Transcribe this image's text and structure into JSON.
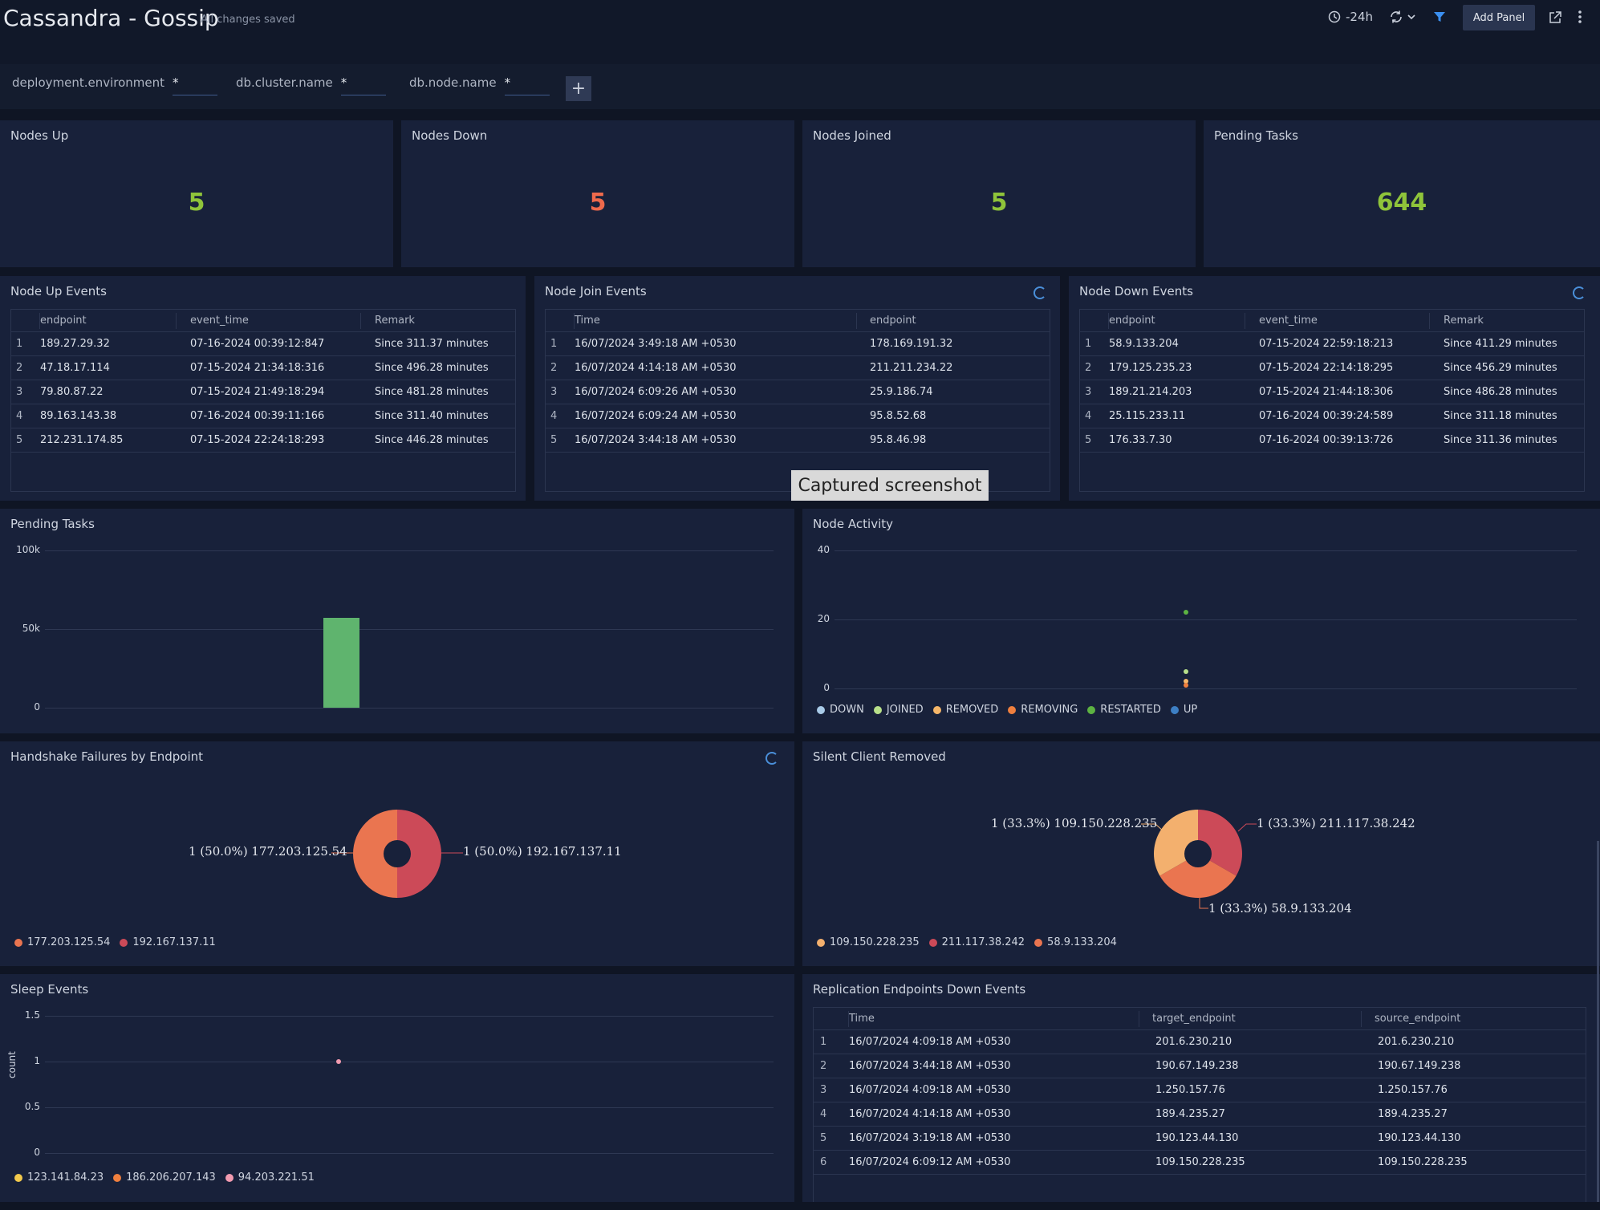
{
  "header": {
    "title": "Cassandra - Gossip",
    "saved_status": "All changes saved",
    "time_range": "-24h",
    "add_panel_label": "Add Panel"
  },
  "filters": [
    {
      "label": "deployment.environment",
      "value": "*"
    },
    {
      "label": "db.cluster.name",
      "value": "*"
    },
    {
      "label": "db.node.name",
      "value": "*"
    }
  ],
  "add_filter_label": "+",
  "stats": [
    {
      "title": "Nodes Up",
      "value": "5",
      "color": "#8fc43a"
    },
    {
      "title": "Nodes Down",
      "value": "5",
      "color": "#ef6a4c"
    },
    {
      "title": "Nodes Joined",
      "value": "5",
      "color": "#8fc43a"
    },
    {
      "title": "Pending Tasks",
      "value": "644",
      "color": "#8fc43a"
    }
  ],
  "node_up_events": {
    "title": "Node Up Events",
    "columns": [
      "endpoint",
      "event_time",
      "Remark"
    ],
    "rows": [
      [
        "1",
        "189.27.29.32",
        "07-16-2024 00:39:12:847",
        "Since 311.37 minutes"
      ],
      [
        "2",
        "47.18.17.114",
        "07-15-2024 21:34:18:316",
        "Since 496.28 minutes"
      ],
      [
        "3",
        "79.80.87.22",
        "07-15-2024 21:49:18:294",
        "Since 481.28 minutes"
      ],
      [
        "4",
        "89.163.143.38",
        "07-16-2024 00:39:11:166",
        "Since 311.40 minutes"
      ],
      [
        "5",
        "212.231.174.85",
        "07-15-2024 22:24:18:293",
        "Since 446.28 minutes"
      ]
    ]
  },
  "node_join_events": {
    "title": "Node Join Events",
    "columns": [
      "Time",
      "endpoint"
    ],
    "rows": [
      [
        "1",
        "16/07/2024 3:49:18 AM +0530",
        "178.169.191.32"
      ],
      [
        "2",
        "16/07/2024 4:14:18 AM +0530",
        "211.211.234.22"
      ],
      [
        "3",
        "16/07/2024 6:09:26 AM +0530",
        "25.9.186.74"
      ],
      [
        "4",
        "16/07/2024 6:09:24 AM +0530",
        "95.8.52.68"
      ],
      [
        "5",
        "16/07/2024 3:44:18 AM +0530",
        "95.8.46.98"
      ]
    ]
  },
  "node_down_events": {
    "title": "Node Down Events",
    "columns": [
      "endpoint",
      "event_time",
      "Remark"
    ],
    "rows": [
      [
        "1",
        "58.9.133.204",
        "07-15-2024 22:59:18:213",
        "Since 411.29 minutes"
      ],
      [
        "2",
        "179.125.235.23",
        "07-15-2024 22:14:18:295",
        "Since 456.29 minutes"
      ],
      [
        "3",
        "189.21.214.203",
        "07-15-2024 21:44:18:306",
        "Since 486.28 minutes"
      ],
      [
        "4",
        "25.115.233.11",
        "07-16-2024 00:39:24:589",
        "Since 311.18 minutes"
      ],
      [
        "5",
        "176.33.7.30",
        "07-16-2024 00:39:13:726",
        "Since 311.36 minutes"
      ]
    ]
  },
  "tooltip": "Captured screenshot",
  "chart_data": [
    {
      "type": "bar",
      "title": "Pending Tasks",
      "yticks": [
        "100k",
        "50k",
        "0"
      ],
      "ylim": [
        0,
        100000
      ],
      "bars": [
        {
          "x_fraction": 0.5,
          "value": 57000,
          "color": "#5fb46e"
        }
      ]
    },
    {
      "type": "scatter",
      "title": "Node Activity",
      "yticks": [
        "40",
        "20",
        "0"
      ],
      "ylim": [
        0,
        40
      ],
      "series": [
        {
          "name": "DOWN",
          "color": "#a9cbe8"
        },
        {
          "name": "JOINED",
          "color": "#b8e08a"
        },
        {
          "name": "REMOVED",
          "color": "#f5b669"
        },
        {
          "name": "REMOVING",
          "color": "#ef7f3e"
        },
        {
          "name": "RESTARTED",
          "color": "#5db342"
        },
        {
          "name": "UP",
          "color": "#3d7fc4"
        }
      ],
      "points": [
        {
          "series": "RESTARTED",
          "value": 22
        },
        {
          "series": "JOINED",
          "value": 5
        },
        {
          "series": "REMOVED",
          "value": 2
        },
        {
          "series": "REMOVING",
          "value": 1
        }
      ]
    },
    {
      "type": "pie",
      "title": "Handshake Failures by Endpoint",
      "slices": [
        {
          "label": "177.203.125.54",
          "value": 1,
          "percent": "50.0%",
          "color": "#ea7550"
        },
        {
          "label": "192.167.137.11",
          "value": 1,
          "percent": "50.0%",
          "color": "#cc4a58"
        }
      ],
      "slice_labels": [
        "1 (50.0%) 177.203.125.54",
        "1 (50.0%) 192.167.137.11"
      ]
    },
    {
      "type": "pie",
      "title": "Silent Client Removed",
      "slices": [
        {
          "label": "109.150.228.235",
          "value": 1,
          "percent": "33.3%",
          "color": "#f3b06e"
        },
        {
          "label": "211.117.38.242",
          "value": 1,
          "percent": "33.3%",
          "color": "#cc4a58"
        },
        {
          "label": "58.9.133.204",
          "value": 1,
          "percent": "33.3%",
          "color": "#ea7550"
        }
      ],
      "slice_labels": [
        "1 (33.3%) 109.150.228.235",
        "1 (33.3%) 211.117.38.242",
        "1 (33.3%) 58.9.133.204"
      ]
    },
    {
      "type": "scatter",
      "title": "Sleep Events",
      "ylabel": "count",
      "yticks": [
        "1.5",
        "1",
        "0.5",
        "0"
      ],
      "ylim": [
        0,
        1.5
      ],
      "series": [
        {
          "name": "123.141.84.23",
          "color": "#f2c94c"
        },
        {
          "name": "186.206.207.143",
          "color": "#ef7f3e"
        },
        {
          "name": "94.203.221.51",
          "color": "#f29bb0"
        }
      ],
      "points": [
        {
          "series": "94.203.221.51",
          "value": 1
        }
      ]
    }
  ],
  "replication_events": {
    "title": "Replication Endpoints Down Events",
    "columns": [
      "Time",
      "target_endpoint",
      "source_endpoint"
    ],
    "rows": [
      [
        "1",
        "16/07/2024 4:09:18 AM +0530",
        "201.6.230.210",
        "201.6.230.210"
      ],
      [
        "2",
        "16/07/2024 3:44:18 AM +0530",
        "190.67.149.238",
        "190.67.149.238"
      ],
      [
        "3",
        "16/07/2024 4:09:18 AM +0530",
        "1.250.157.76",
        "1.250.157.76"
      ],
      [
        "4",
        "16/07/2024 4:14:18 AM +0530",
        "189.4.235.27",
        "189.4.235.27"
      ],
      [
        "5",
        "16/07/2024 3:19:18 AM +0530",
        "190.123.44.130",
        "190.123.44.130"
      ],
      [
        "6",
        "16/07/2024 6:09:12 AM +0530",
        "109.150.228.235",
        "109.150.228.235"
      ]
    ]
  }
}
